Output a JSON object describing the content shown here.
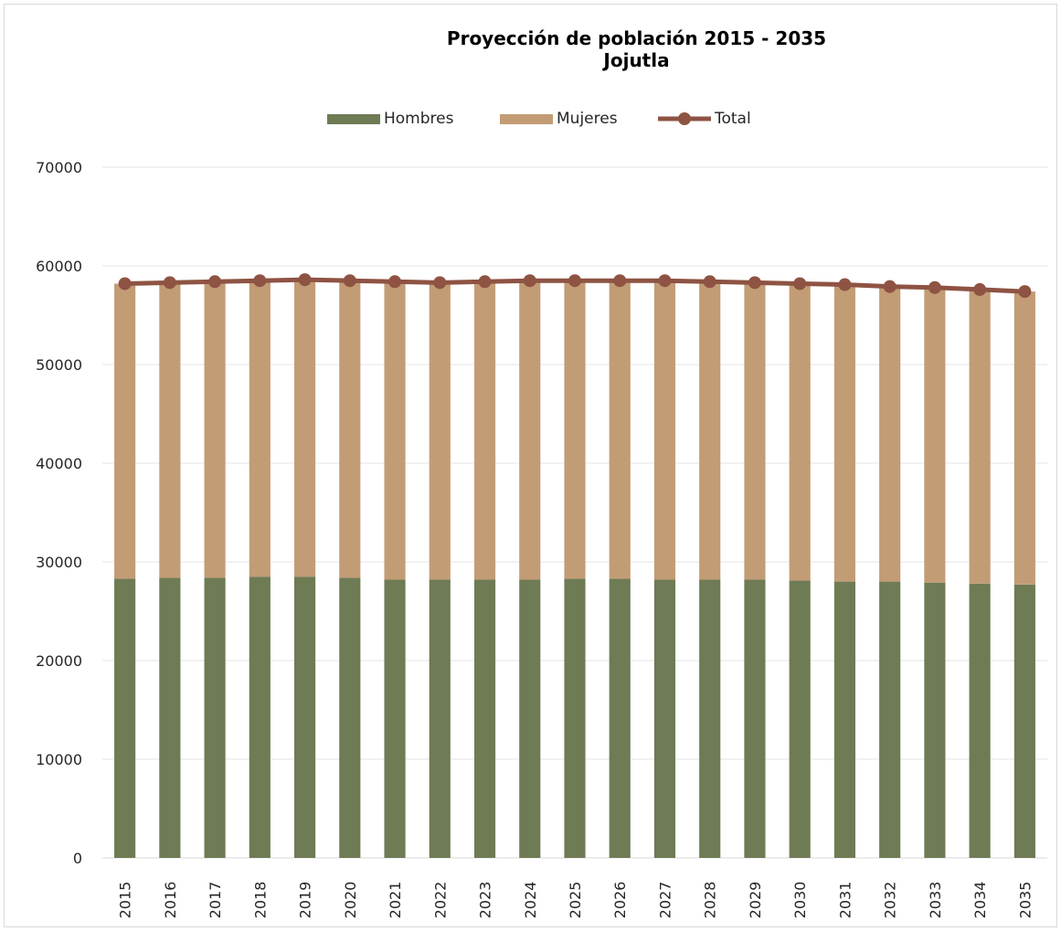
{
  "chart_data": {
    "type": "bar",
    "title": "Proyección de población 2015 - 2035",
    "subtitle": "Jojutla",
    "categories": [
      "2015",
      "2016",
      "2017",
      "2018",
      "2019",
      "2020",
      "2021",
      "2022",
      "2023",
      "2024",
      "2025",
      "2026",
      "2027",
      "2028",
      "2029",
      "2030",
      "2031",
      "2032",
      "2033",
      "2034",
      "2035"
    ],
    "series": [
      {
        "name": "Hombres",
        "type": "bar",
        "stacked": true,
        "color": "#6E7B54",
        "values": [
          28300,
          28400,
          28400,
          28500,
          28500,
          28400,
          28200,
          28200,
          28200,
          28200,
          28300,
          28300,
          28200,
          28200,
          28200,
          28100,
          28000,
          28000,
          27900,
          27800,
          27700
        ]
      },
      {
        "name": "Mujeres",
        "type": "bar",
        "stacked": true,
        "color": "#C29C75",
        "values": [
          29900,
          29900,
          30000,
          30000,
          30100,
          30100,
          30200,
          30100,
          30200,
          30300,
          30200,
          30200,
          30300,
          30200,
          30100,
          30100,
          30100,
          29900,
          29900,
          29800,
          29700
        ]
      },
      {
        "name": "Total",
        "type": "line",
        "color": "#8E5343",
        "values": [
          58200,
          58300,
          58400,
          58500,
          58600,
          58500,
          58400,
          58300,
          58400,
          58500,
          58500,
          58500,
          58500,
          58400,
          58300,
          58200,
          58100,
          57900,
          57800,
          57600,
          57400
        ]
      }
    ],
    "xlabel": "",
    "ylabel": "",
    "ylim": [
      0,
      70000
    ],
    "yticks": [
      "0",
      "10000",
      "20000",
      "30000",
      "40000",
      "50000",
      "60000",
      "70000"
    ],
    "grid": true,
    "legend_position": "top"
  }
}
